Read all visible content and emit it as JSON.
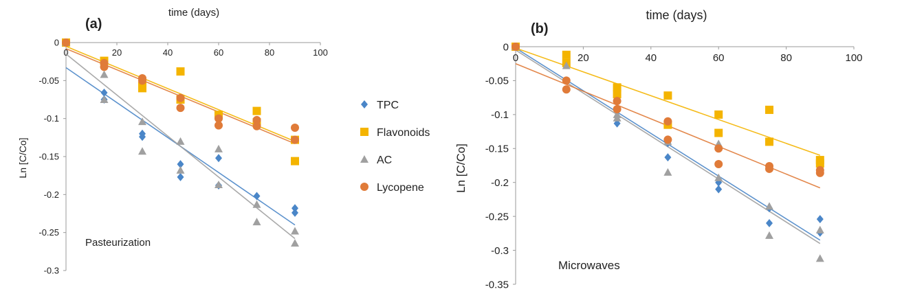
{
  "legend": {
    "items": [
      {
        "name": "TPC",
        "color": "#4a86c8",
        "marker": "diamond"
      },
      {
        "name": "Flavonoids",
        "color": "#f4b400",
        "marker": "square"
      },
      {
        "name": "AC",
        "color": "#a0a0a0",
        "marker": "triangle"
      },
      {
        "name": "Lycopene",
        "color": "#e07b39",
        "marker": "circle"
      }
    ]
  },
  "chart_data": [
    {
      "type": "scatter",
      "panel_label": "(a)",
      "title": "",
      "xlabel": "time (days)",
      "ylabel": "Ln [C/Co]",
      "annotation": "Pasteurization",
      "xlim": [
        0,
        100
      ],
      "ylim": [
        -0.3,
        0
      ],
      "xticks": [
        "0",
        "20",
        "40",
        "60",
        "80",
        "100"
      ],
      "yticks": [
        "0",
        "-0.05",
        "-0.1",
        "-0.15",
        "-0.2",
        "-0.25",
        "-0.3"
      ],
      "grid": false,
      "series": [
        {
          "name": "TPC",
          "x": [
            0,
            15,
            15,
            30,
            30,
            45,
            45,
            60,
            60,
            75,
            90,
            90
          ],
          "y": [
            0,
            -0.066,
            -0.075,
            -0.12,
            -0.124,
            -0.16,
            -0.177,
            -0.152,
            -0.188,
            -0.202,
            -0.218,
            -0.224
          ],
          "trend": [
            [
              0,
              -0.033
            ],
            [
              90,
              -0.24
            ]
          ]
        },
        {
          "name": "Flavonoids",
          "x": [
            0,
            15,
            30,
            30,
            45,
            45,
            60,
            75,
            75,
            90,
            90
          ],
          "y": [
            0,
            -0.024,
            -0.057,
            -0.06,
            -0.038,
            -0.075,
            -0.095,
            -0.09,
            -0.105,
            -0.128,
            -0.156
          ],
          "trend": [
            [
              0,
              -0.005
            ],
            [
              90,
              -0.13
            ]
          ]
        },
        {
          "name": "AC",
          "x": [
            0,
            15,
            15,
            30,
            30,
            45,
            45,
            60,
            60,
            75,
            75,
            90,
            90
          ],
          "y": [
            0,
            -0.042,
            -0.075,
            -0.104,
            -0.143,
            -0.13,
            -0.168,
            -0.14,
            -0.187,
            -0.213,
            -0.236,
            -0.248,
            -0.264
          ],
          "trend": [
            [
              0,
              -0.015
            ],
            [
              90,
              -0.258
            ]
          ]
        },
        {
          "name": "Lycopene",
          "x": [
            0,
            15,
            15,
            30,
            30,
            45,
            45,
            60,
            60,
            75,
            75,
            90,
            90
          ],
          "y": [
            0,
            -0.027,
            -0.032,
            -0.047,
            -0.05,
            -0.073,
            -0.086,
            -0.1,
            -0.109,
            -0.102,
            -0.11,
            -0.112,
            -0.128
          ],
          "trend": [
            [
              0,
              -0.008
            ],
            [
              90,
              -0.133
            ]
          ]
        }
      ]
    },
    {
      "type": "scatter",
      "panel_label": "(b)",
      "title": "",
      "xlabel": "time (days)",
      "ylabel": "Ln [C/Co]",
      "annotation": "Microwaves",
      "xlim": [
        0,
        100
      ],
      "ylim": [
        -0.35,
        0
      ],
      "xticks": [
        "0",
        "20",
        "40",
        "60",
        "80",
        "100"
      ],
      "yticks": [
        "0",
        "-0.05",
        "-0.1",
        "-0.15",
        "-0.2",
        "-0.25",
        "-0.3",
        "-0.35"
      ],
      "grid": false,
      "series": [
        {
          "name": "TPC",
          "x": [
            0,
            15,
            30,
            45,
            45,
            60,
            60,
            75,
            75,
            90,
            90
          ],
          "y": [
            0,
            -0.05,
            -0.113,
            -0.142,
            -0.163,
            -0.2,
            -0.21,
            -0.238,
            -0.26,
            -0.254,
            -0.274
          ],
          "trend": [
            [
              0,
              -0.002
            ],
            [
              90,
              -0.285
            ]
          ]
        },
        {
          "name": "Flavonoids",
          "x": [
            0,
            15,
            15,
            30,
            30,
            45,
            45,
            60,
            60,
            75,
            75,
            90,
            90
          ],
          "y": [
            0,
            -0.012,
            -0.024,
            -0.06,
            -0.07,
            -0.072,
            -0.115,
            -0.1,
            -0.127,
            -0.093,
            -0.14,
            -0.167,
            -0.172
          ],
          "trend": [
            [
              0,
              -0.002
            ],
            [
              90,
              -0.16
            ]
          ]
        },
        {
          "name": "AC",
          "x": [
            0,
            15,
            30,
            30,
            45,
            45,
            60,
            60,
            75,
            75,
            90,
            90
          ],
          "y": [
            0,
            -0.028,
            -0.1,
            -0.105,
            -0.14,
            -0.185,
            -0.143,
            -0.193,
            -0.235,
            -0.278,
            -0.27,
            -0.312
          ],
          "trend": [
            [
              0,
              -0.005
            ],
            [
              90,
              -0.29
            ]
          ]
        },
        {
          "name": "Lycopene",
          "x": [
            0,
            15,
            15,
            30,
            30,
            45,
            45,
            60,
            60,
            75,
            75,
            90,
            90
          ],
          "y": [
            0,
            -0.05,
            -0.063,
            -0.08,
            -0.092,
            -0.11,
            -0.137,
            -0.15,
            -0.173,
            -0.176,
            -0.18,
            -0.182,
            -0.186
          ],
          "trend": [
            [
              0,
              -0.025
            ],
            [
              90,
              -0.208
            ]
          ]
        }
      ]
    }
  ]
}
